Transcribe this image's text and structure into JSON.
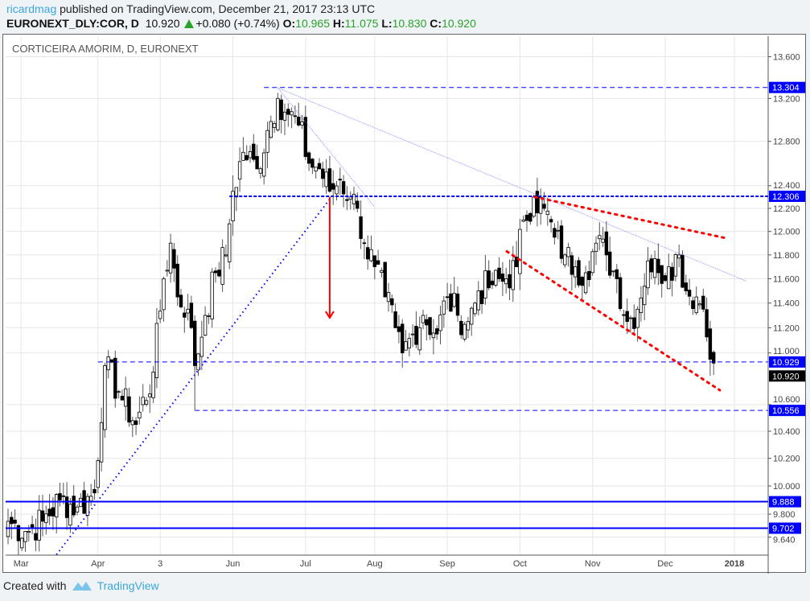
{
  "header": {
    "user": "ricardmag",
    "published_text": " published on TradingView.com, December 21, 2017 23:13 UTC",
    "symbol": "EURONEXT_DLY:COR, D",
    "last": "10.920",
    "change": "+0.080 (+0.74%)",
    "o_label": "O:",
    "o": "10.965",
    "h_label": "H:",
    "h": "11.075",
    "l_label": "L:",
    "l": "10.830",
    "c_label": "C:",
    "c": "10.920"
  },
  "footer": {
    "created_with": "Created with",
    "brand": "TradingView"
  },
  "colors": {
    "up": "#ffffff",
    "down": "#000000",
    "level": "#0000ff",
    "red": "#ff0000",
    "grid": "#e6e6e6"
  },
  "chart_data": {
    "type": "candlestick",
    "title": "CORTICEIRA AMORIM, D, EURONEXT",
    "y_scale": "log",
    "ylim": [
      9.55,
      13.75
    ],
    "y_ticks": [
      "13.600",
      "13.200",
      "12.800",
      "12.400",
      "12.200",
      "12.000",
      "11.800",
      "11.600",
      "11.400",
      "11.200",
      "11.000",
      "10.600",
      "10.400",
      "10.200",
      "10.000",
      "9.800",
      "9.640"
    ],
    "x_ticks": [
      {
        "label": "Mar",
        "i": 4
      },
      {
        "label": "Apr",
        "i": 26
      },
      {
        "label": "3",
        "i": 44
      },
      {
        "label": "Jun",
        "i": 65
      },
      {
        "label": "Jul",
        "i": 86
      },
      {
        "label": "Aug",
        "i": 106
      },
      {
        "label": "Sep",
        "i": 127
      },
      {
        "label": "Oct",
        "i": 148
      },
      {
        "label": "Nov",
        "i": 169
      },
      {
        "label": "Dec",
        "i": 190
      },
      {
        "label": "2018",
        "i": 210
      }
    ],
    "anchor_closes": [
      [
        0,
        9.75
      ],
      [
        5,
        9.68
      ],
      [
        10,
        9.75
      ],
      [
        15,
        9.9
      ],
      [
        20,
        9.85
      ],
      [
        25,
        9.95
      ],
      [
        28,
        10.9
      ],
      [
        32,
        10.7
      ],
      [
        37,
        10.45
      ],
      [
        42,
        10.85
      ],
      [
        45,
        11.6
      ],
      [
        47,
        11.9
      ],
      [
        49,
        11.45
      ],
      [
        52,
        11.35
      ],
      [
        54,
        10.9
      ],
      [
        57,
        11.3
      ],
      [
        60,
        11.65
      ],
      [
        63,
        11.8
      ],
      [
        65,
        12.35
      ],
      [
        68,
        12.7
      ],
      [
        72,
        12.55
      ],
      [
        75,
        12.9
      ],
      [
        78,
        13.2
      ],
      [
        81,
        13.05
      ],
      [
        84,
        12.95
      ],
      [
        87,
        12.6
      ],
      [
        90,
        12.55
      ],
      [
        93,
        12.35
      ],
      [
        96,
        12.45
      ],
      [
        99,
        12.3
      ],
      [
        101,
        12.2
      ],
      [
        103,
        11.9
      ],
      [
        106,
        11.7
      ],
      [
        109,
        11.45
      ],
      [
        112,
        11.2
      ],
      [
        114,
        11.0
      ],
      [
        117,
        11.15
      ],
      [
        120,
        11.3
      ],
      [
        124,
        11.15
      ],
      [
        127,
        11.45
      ],
      [
        130,
        11.3
      ],
      [
        133,
        11.25
      ],
      [
        136,
        11.5
      ],
      [
        140,
        11.55
      ],
      [
        144,
        11.6
      ],
      [
        147,
        11.7
      ],
      [
        149,
        12.1
      ],
      [
        152,
        12.3
      ],
      [
        155,
        12.2
      ],
      [
        158,
        11.95
      ],
      [
        161,
        11.8
      ],
      [
        164,
        11.7
      ],
      [
        167,
        11.65
      ],
      [
        170,
        11.9
      ],
      [
        173,
        11.8
      ],
      [
        176,
        11.6
      ],
      [
        179,
        11.25
      ],
      [
        182,
        11.35
      ],
      [
        185,
        11.75
      ],
      [
        188,
        11.65
      ],
      [
        191,
        11.7
      ],
      [
        194,
        11.8
      ],
      [
        196,
        11.5
      ],
      [
        199,
        11.45
      ],
      [
        201,
        11.35
      ],
      [
        203,
        10.95
      ],
      [
        204,
        10.92
      ]
    ],
    "levels": [
      {
        "price": 13.304,
        "label": "13.304",
        "from_i": 74,
        "style": "dashed"
      },
      {
        "price": 12.306,
        "label": "12.306",
        "from_i": 64,
        "style": "dotted-thick"
      },
      {
        "price": 10.929,
        "label": "10.929",
        "from_i": 26,
        "style": "dashed"
      },
      {
        "price": 10.556,
        "label": "10.556",
        "from_i": 54,
        "style": "dashed"
      },
      {
        "price": 9.888,
        "label": "9.888",
        "from_i": -1,
        "style": "solid"
      },
      {
        "price": 9.702,
        "label": "9.702",
        "from_i": -1,
        "style": "solid"
      }
    ],
    "last_price": {
      "price": 10.92,
      "label": "10.920"
    },
    "trendlines": [
      {
        "name": "support-uptrend",
        "from": [
          14,
          9.52
        ],
        "to": [
          93.5,
          12.3
        ],
        "color": "#0000ff",
        "style": "dotted"
      },
      {
        "name": "long-downtrend",
        "from": [
          78,
          13.3
        ],
        "to": [
          213.5,
          11.58
        ],
        "color": "#7777ff",
        "style": "thin"
      },
      {
        "name": "short-downtrend",
        "from": [
          78,
          13.3
        ],
        "to": [
          105.8,
          12.22
        ],
        "color": "#7777ff",
        "style": "thin"
      },
      {
        "name": "channel-upper",
        "from": [
          152.3,
          12.3
        ],
        "to": [
          208,
          11.94
        ],
        "color": "#ff0000",
        "style": "red-dotted"
      },
      {
        "name": "channel-lower",
        "from": [
          144.2,
          11.83
        ],
        "to": [
          205.8,
          10.71
        ],
        "color": "#ff0000",
        "style": "red-dotted"
      }
    ],
    "target_arrow": {
      "i": 93,
      "from": 12.3,
      "to": 11.28
    }
  }
}
